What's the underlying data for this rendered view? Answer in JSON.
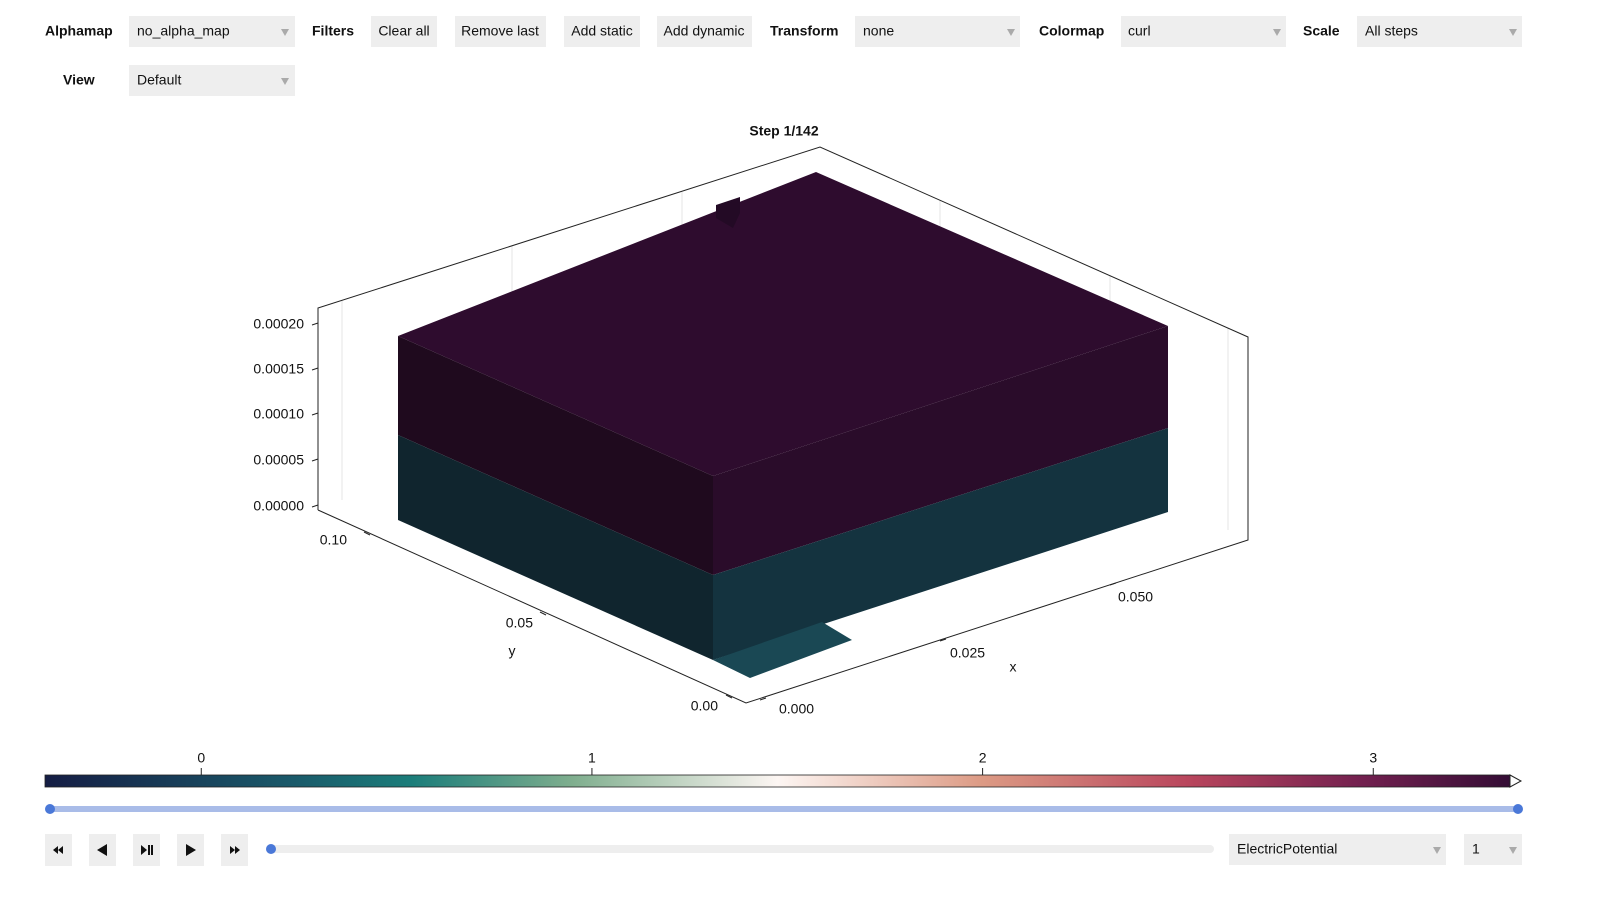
{
  "toolbar": {
    "alphamap": {
      "label": "Alphamap",
      "value": "no_alpha_map"
    },
    "filters": {
      "label": "Filters",
      "buttons": [
        "Clear all",
        "Remove last",
        "Add static",
        "Add dynamic"
      ]
    },
    "transform": {
      "label": "Transform",
      "value": "none"
    },
    "colormap": {
      "label": "Colormap",
      "value": "curl"
    },
    "scale": {
      "label": "Scale",
      "value": "All steps"
    },
    "view": {
      "label": "View",
      "value": "Default"
    }
  },
  "plot": {
    "title": "Step 1/142",
    "z_ticks": [
      "0.00020",
      "0.00015",
      "0.00010",
      "0.00005",
      "0.00000"
    ],
    "y_ticks": [
      "0.10",
      "0.05",
      "0.00"
    ],
    "y_label": "y",
    "x_ticks": [
      "0.000",
      "0.025",
      "0.050"
    ],
    "x_label": "x"
  },
  "colorbar": {
    "range": [
      -0.4,
      3.35
    ],
    "ticks": [
      0,
      1,
      2,
      3
    ]
  },
  "controls": {
    "variable": "ElectricPotential",
    "index": "1"
  }
}
